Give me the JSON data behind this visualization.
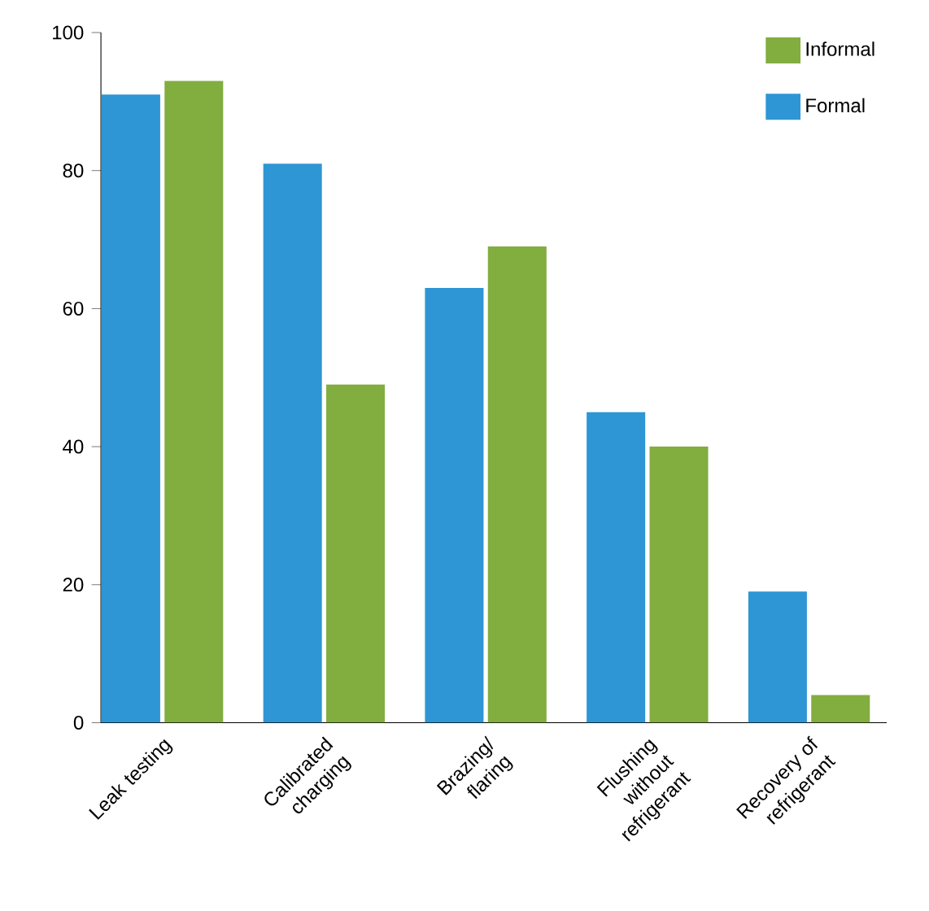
{
  "chart_data": {
    "type": "bar",
    "categories": [
      "Leak testing",
      "Calibrated charging",
      "Brazing/ flaring",
      "Flushing without refrigerant",
      "Recovery of refrigerant"
    ],
    "series": [
      {
        "name": "Formal",
        "color": "#2e96d4",
        "values": [
          91,
          81,
          63,
          45,
          19
        ]
      },
      {
        "name": "Informal",
        "color": "#82ad3f",
        "values": [
          93,
          49,
          69,
          40,
          4
        ]
      }
    ],
    "ylim": [
      0,
      100
    ],
    "yticks": [
      0,
      20,
      40,
      60,
      80,
      100
    ],
    "grid": false,
    "legend": "top right"
  }
}
